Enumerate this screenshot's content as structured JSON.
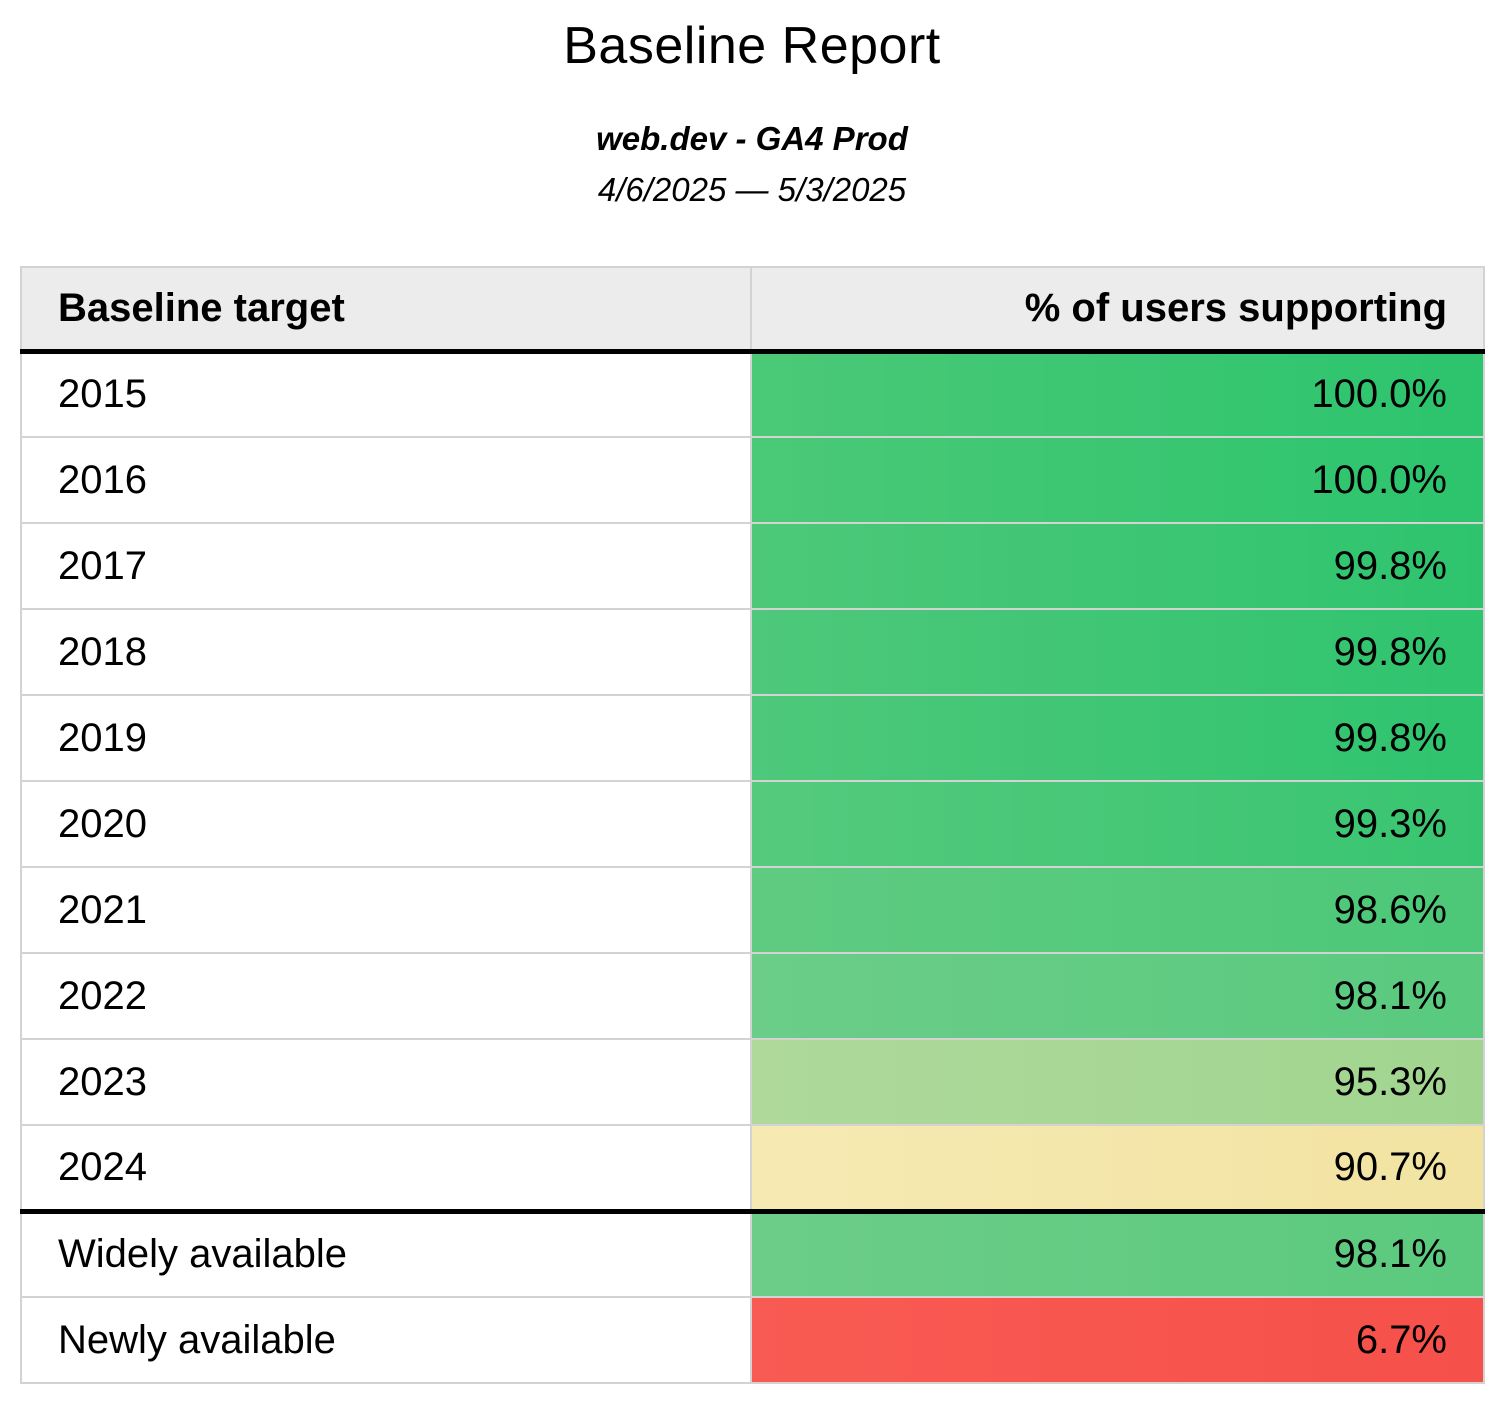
{
  "header": {
    "title": "Baseline Report",
    "source": "web.dev - GA4 Prod",
    "date_range": "4/6/2025 — 5/3/2025"
  },
  "colors": {
    "header_row_background": "#ececec",
    "grid_border": "#d3d3d3",
    "section_divider": "#000000",
    "text": "#000000"
  },
  "table": {
    "columns": [
      "Baseline target",
      "% of users supporting"
    ],
    "rows": [
      {
        "target": "2015",
        "value": "100.0%",
        "color_left": "#4bc977",
        "color_right": "#2cc46d",
        "thick_bottom_border": false
      },
      {
        "target": "2016",
        "value": "100.0%",
        "color_left": "#4bc977",
        "color_right": "#2cc46d",
        "thick_bottom_border": false
      },
      {
        "target": "2017",
        "value": "99.8%",
        "color_left": "#4dc879",
        "color_right": "#2ec46e",
        "thick_bottom_border": false
      },
      {
        "target": "2018",
        "value": "99.8%",
        "color_left": "#4ec87a",
        "color_right": "#2fc46e",
        "thick_bottom_border": false
      },
      {
        "target": "2019",
        "value": "99.8%",
        "color_left": "#4ec87a",
        "color_right": "#2fc46e",
        "thick_bottom_border": false
      },
      {
        "target": "2020",
        "value": "99.3%",
        "color_left": "#55ca7d",
        "color_right": "#38c571",
        "thick_bottom_border": false
      },
      {
        "target": "2021",
        "value": "98.6%",
        "color_left": "#5fcb81",
        "color_right": "#4cc878",
        "thick_bottom_border": false
      },
      {
        "target": "2022",
        "value": "98.1%",
        "color_left": "#6bcd88",
        "color_right": "#59ca7e",
        "thick_bottom_border": false
      },
      {
        "target": "2023",
        "value": "95.3%",
        "color_left": "#aed99b",
        "color_right": "#a1d58f",
        "thick_bottom_border": false
      },
      {
        "target": "2024",
        "value": "90.7%",
        "color_left": "#f6eab3",
        "color_right": "#f2e3a1",
        "thick_bottom_border": true
      },
      {
        "target": "Widely available",
        "value": "98.1%",
        "color_left": "#6ccd88",
        "color_right": "#5bca7e",
        "thick_bottom_border": false
      },
      {
        "target": "Newly available",
        "value": "6.7%",
        "color_left": "#f85b53",
        "color_right": "#f6504a",
        "thick_bottom_border": false
      }
    ]
  }
}
